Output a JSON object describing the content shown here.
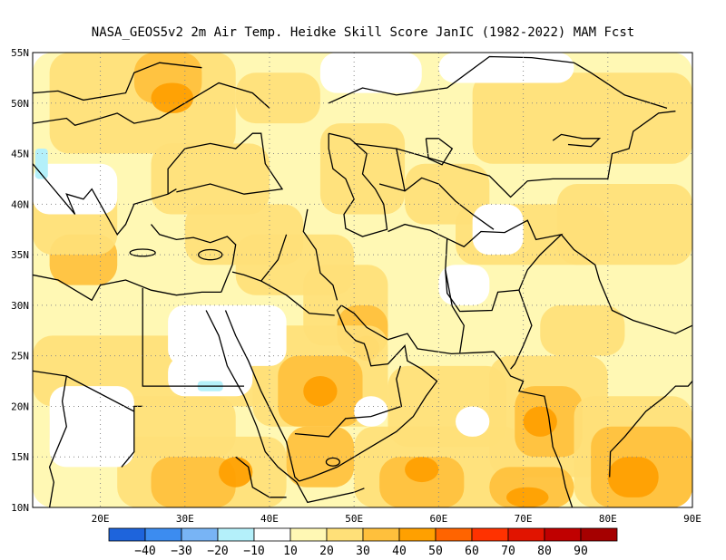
{
  "title": "NASA_GEOS5v2  2m Air Temp. Heidke Skill Score JanIC (1982-2022) MAM Fcst",
  "latitude_labels": [
    "55N",
    "50N",
    "45N",
    "40N",
    "35N",
    "30N",
    "25N",
    "20N",
    "15N",
    "10N"
  ],
  "longitude_labels": [
    "20E",
    "30E",
    "40E",
    "50E",
    "60E",
    "70E",
    "80E",
    "90E"
  ],
  "colorbar": {
    "colors": [
      "#1e64dc",
      "#3c8cf0",
      "#78b4f5",
      "#b4f0fa",
      "#ffffff",
      "#fff8b4",
      "#ffe078",
      "#ffc03c",
      "#ffa000",
      "#ff6400",
      "#ff3200",
      "#e11400",
      "#c00000",
      "#a50000"
    ],
    "labels": [
      "−40",
      "−30",
      "−20",
      "−10",
      "10",
      "20",
      "30",
      "40",
      "50",
      "60",
      "70",
      "80",
      "90"
    ]
  },
  "map": {
    "lon_range": [
      12,
      90
    ],
    "lat_range": [
      10,
      55
    ],
    "field_colors": {
      "pale": "#fff8b4",
      "light": "#ffe078",
      "mid": "#ffc03c",
      "strong": "#ffa000",
      "cyan": "#b4f0fa"
    },
    "coastline_color": "#000000",
    "grid": "dotted"
  }
}
